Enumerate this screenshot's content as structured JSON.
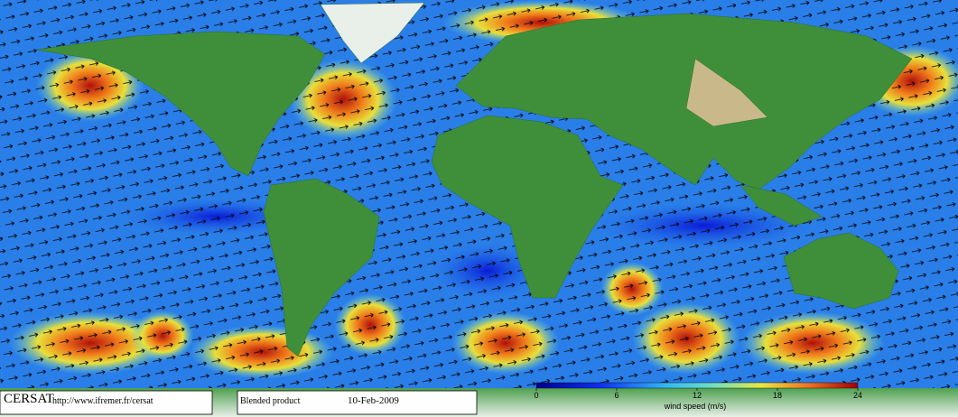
{
  "footer": {
    "logo": "CERSAT",
    "url": "http://www.ifremer.fr/cersat",
    "product": "Blended product",
    "date": "10-Feb-2009"
  },
  "colorbar": {
    "title": "wind speed (m/s)",
    "lim": [
      0,
      24
    ],
    "ticks": [
      0,
      6,
      12,
      18,
      24
    ]
  }
}
